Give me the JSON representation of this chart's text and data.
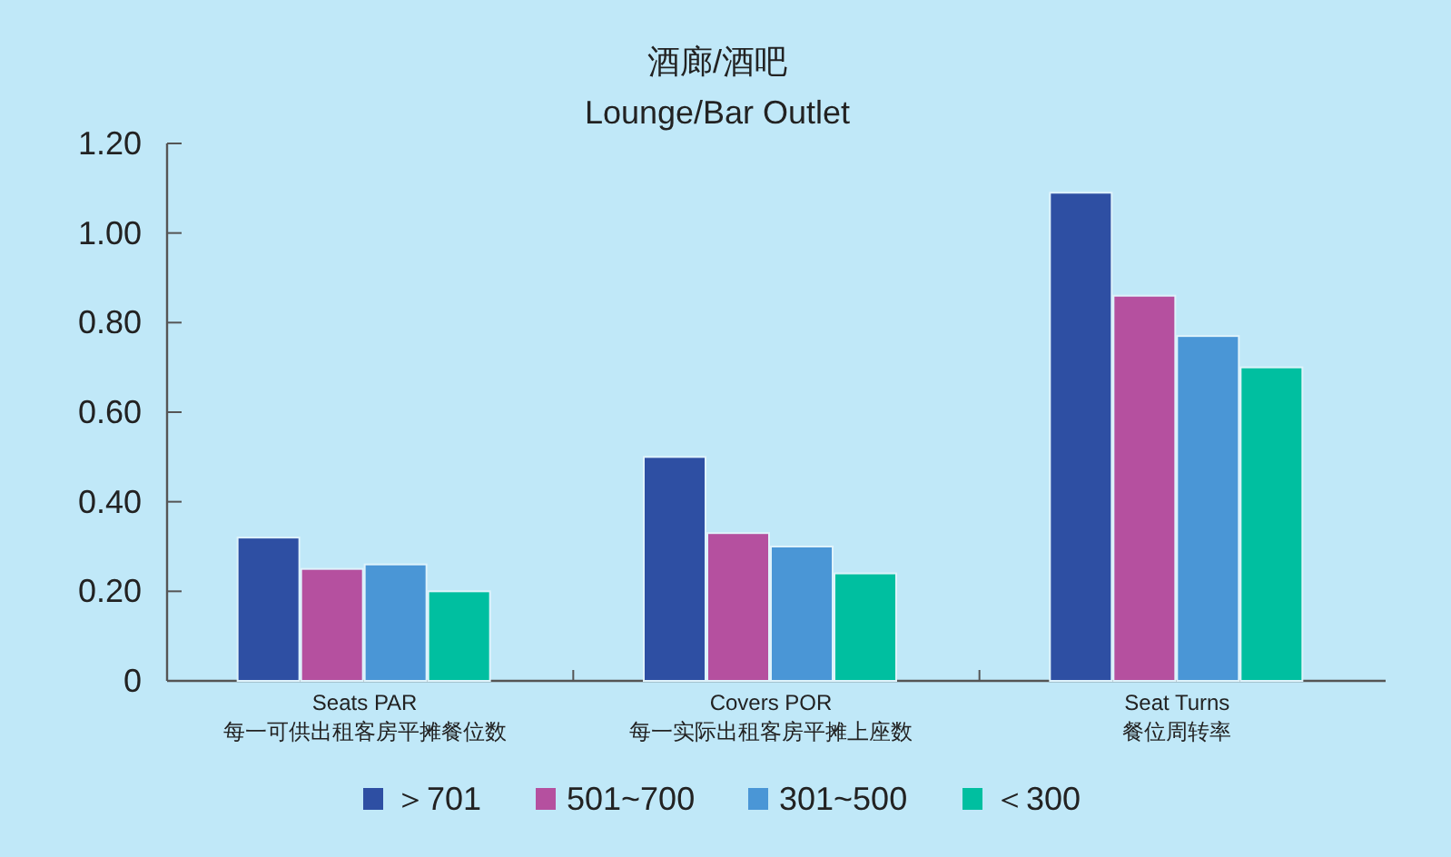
{
  "chart_data": {
    "type": "bar",
    "title": "酒廊/酒吧",
    "subtitle": "Lounge/Bar Outlet",
    "categories": [
      "Seats PAR\n每一可供出租客房平摊餐位数",
      "Covers POR\n每一实际出租客房平摊上座数",
      "Seat Turns\n餐位周转率"
    ],
    "series": [
      {
        "name": "＞701",
        "color": "#2e4fa3",
        "values": [
          0.32,
          0.5,
          1.09
        ]
      },
      {
        "name": "501~700",
        "color": "#b5509f",
        "values": [
          0.25,
          0.33,
          0.86
        ]
      },
      {
        "name": "301~500",
        "color": "#4a96d6",
        "values": [
          0.26,
          0.3,
          0.77
        ]
      },
      {
        "name": "＜300",
        "color": "#00bfa0",
        "values": [
          0.2,
          0.24,
          0.7
        ]
      }
    ],
    "ylim": [
      0,
      1.2
    ],
    "yticks": [
      0,
      {
        "value": 0.2,
        "label": "0.20"
      },
      {
        "value": 0.4,
        "label": "0.40"
      },
      {
        "value": 0.6,
        "label": "0.60"
      },
      {
        "value": 0.8,
        "label": "0.80"
      },
      {
        "value": 1.0,
        "label": "1.00"
      },
      {
        "value": 1.2,
        "label": "1.20"
      }
    ],
    "grid": false,
    "legend": "bottom"
  }
}
